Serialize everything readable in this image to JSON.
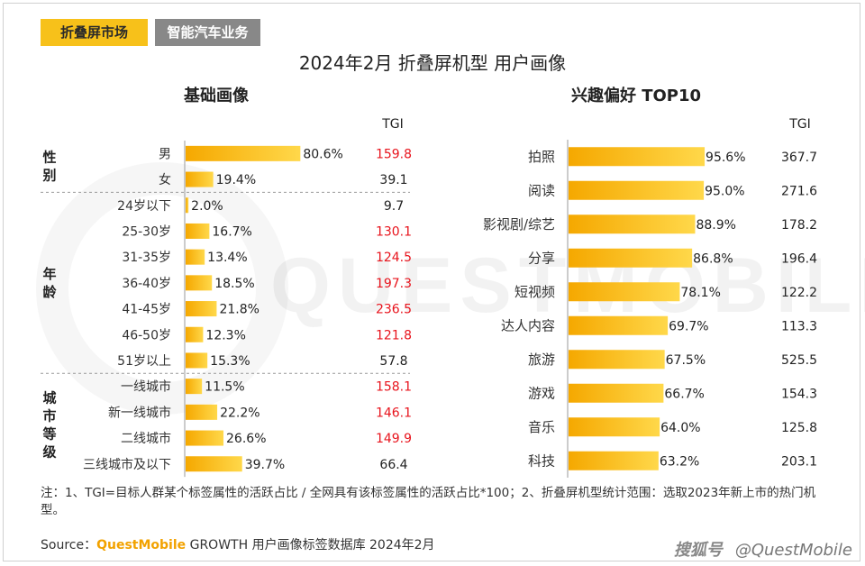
{
  "tabs": [
    {
      "label": "折叠屏市场",
      "active": true
    },
    {
      "label": "智能汽车业务",
      "active": false
    }
  ],
  "title": "2024年2月 折叠屏机型 用户画像",
  "watermark": "QUESTMOBILE",
  "tgi_header": "TGI",
  "colors": {
    "bar": "#f7b500",
    "bar_light": "#ffd84a",
    "highlight": "#e8141d",
    "normal": "#222222",
    "tab_active": "#f7c11a",
    "tab_inactive": "#888888"
  },
  "chart_data": [
    {
      "type": "bar",
      "orientation": "horizontal",
      "title": "基础画像",
      "groups": [
        {
          "name": "性别",
          "categories": [
            "男",
            "女"
          ]
        },
        {
          "name": "年龄",
          "categories": [
            "24岁以下",
            "25-30岁",
            "31-35岁",
            "36-40岁",
            "41-45岁",
            "46-50岁",
            "51岁以上"
          ]
        },
        {
          "name": "城市等级",
          "categories": [
            "一线城市",
            "新一线城市",
            "二线城市",
            "三线城市及以下"
          ]
        }
      ],
      "categories": [
        "男",
        "女",
        "24岁以下",
        "25-30岁",
        "31-35岁",
        "36-40岁",
        "41-45岁",
        "46-50岁",
        "51岁以上",
        "一线城市",
        "新一线城市",
        "二线城市",
        "三线城市及以下"
      ],
      "values": [
        80.6,
        19.4,
        2.0,
        16.7,
        13.4,
        18.5,
        21.8,
        12.3,
        15.3,
        11.5,
        22.2,
        26.6,
        39.7
      ],
      "value_labels": [
        "80.6%",
        "19.4%",
        "2.0%",
        "16.7%",
        "13.4%",
        "18.5%",
        "21.8%",
        "12.3%",
        "15.3%",
        "11.5%",
        "22.2%",
        "26.6%",
        "39.7%"
      ],
      "tgi": [
        "159.8",
        "39.1",
        "9.7",
        "130.1",
        "124.5",
        "197.3",
        "236.5",
        "121.8",
        "57.8",
        "158.1",
        "146.1",
        "149.9",
        "66.4"
      ],
      "tgi_highlight": [
        true,
        false,
        false,
        true,
        true,
        true,
        true,
        true,
        false,
        true,
        true,
        true,
        false
      ],
      "xlim": [
        0,
        100
      ]
    },
    {
      "type": "bar",
      "orientation": "horizontal",
      "title": "兴趣偏好 TOP10",
      "categories": [
        "拍照",
        "阅读",
        "影视剧/综艺",
        "分享",
        "短视频",
        "达人内容",
        "旅游",
        "游戏",
        "音乐",
        "科技"
      ],
      "values": [
        95.6,
        95.0,
        88.9,
        86.8,
        78.1,
        69.7,
        67.5,
        66.7,
        64.0,
        63.2
      ],
      "value_labels": [
        "95.6%",
        "95.0%",
        "88.9%",
        "86.8%",
        "78.1%",
        "69.7%",
        "67.5%",
        "66.7%",
        "64.0%",
        "63.2%"
      ],
      "tgi": [
        "367.7",
        "271.6",
        "178.2",
        "196.4",
        "122.2",
        "113.3",
        "525.5",
        "154.3",
        "125.8",
        "203.1"
      ],
      "xlim": [
        0,
        100
      ]
    }
  ],
  "note": "注：1、TGI=目标人群某个标签属性的活跃占比 / 全网具有该标签属性的活跃占比*100；2、折叠屏机型统计范围：选取2023年新上市的热门机型。",
  "source": {
    "prefix": "Source：",
    "brand": "QuestMobile",
    "text": " GROWTH 用户画像标签数据库 2024年2月"
  },
  "footer_brand": {
    "logo": "搜狐号",
    "handle": "@QuestMobile"
  }
}
